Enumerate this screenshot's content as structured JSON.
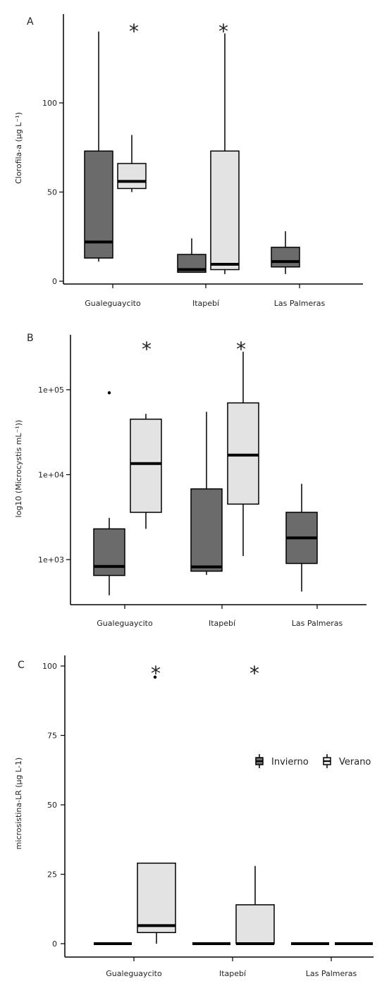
{
  "colors": {
    "winter": "#6b6b6b",
    "summer": "#e3e3e3",
    "stroke": "#000000"
  },
  "legend": {
    "winter_label": "Invierno",
    "summer_label": "Verano"
  },
  "chart_data": [
    {
      "type": "box",
      "panel": "A",
      "ylabel": "Clorofila-a (µg L⁻¹)",
      "y_scale": "linear",
      "ylim": [
        0,
        140
      ],
      "y_ticks": [
        0,
        50,
        100
      ],
      "y_tick_labels": [
        "0",
        "50",
        "100"
      ],
      "categories": [
        "Gualeguaycito",
        "Itapebí",
        "Las Palmeras"
      ],
      "series": [
        {
          "name": "Invierno",
          "boxes": [
            {
              "category": "Gualeguaycito",
              "min": 11,
              "q1": 13,
              "median": 22,
              "q3": 73,
              "max": 140
            },
            {
              "category": "Itapebí",
              "min": 5,
              "q1": 5,
              "median": 6.5,
              "q3": 15,
              "max": 24
            },
            {
              "category": "Las Palmeras",
              "min": 4,
              "q1": 8,
              "median": 11,
              "q3": 19,
              "max": 28
            }
          ]
        },
        {
          "name": "Verano",
          "boxes": [
            {
              "category": "Gualeguaycito",
              "min": 50,
              "q1": 52,
              "median": 56,
              "q3": 66,
              "max": 82
            },
            {
              "category": "Itapebí",
              "min": 4,
              "q1": 6.5,
              "median": 9.5,
              "q3": 73,
              "max": 139
            },
            null
          ]
        }
      ],
      "significance": [
        "*",
        "*"
      ]
    },
    {
      "type": "box",
      "panel": "B",
      "ylabel": "log10 (Microcystis mL⁻¹))",
      "y_scale": "log",
      "ylim": [
        300,
        500000
      ],
      "y_ticks": [
        1000,
        10000,
        100000
      ],
      "y_tick_labels": [
        "1e+03",
        "1e+04",
        "1e+05"
      ],
      "categories": [
        "Gualeguaycito",
        "Itapebí",
        "Las Palmeras"
      ],
      "series": [
        {
          "name": "Invierno",
          "boxes": [
            {
              "category": "Gualeguaycito",
              "min": 380,
              "q1": 650,
              "median": 830,
              "q3": 2300,
              "max": 3100,
              "outliers": [
                92000
              ]
            },
            {
              "category": "Itapebí",
              "min": 660,
              "q1": 730,
              "median": 820,
              "q3": 6800,
              "max": 55000
            },
            {
              "category": "Las Palmeras",
              "min": 420,
              "q1": 900,
              "median": 1800,
              "q3": 3600,
              "max": 7800
            }
          ]
        },
        {
          "name": "Verano",
          "boxes": [
            {
              "category": "Gualeguaycito",
              "min": 2300,
              "q1": 3600,
              "median": 13500,
              "q3": 45000,
              "max": 52000
            },
            {
              "category": "Itapebí",
              "min": 1100,
              "q1": 4500,
              "median": 17000,
              "q3": 70000,
              "max": 280000
            },
            null
          ]
        }
      ],
      "significance": [
        "*",
        "*"
      ]
    },
    {
      "type": "box",
      "panel": "C",
      "ylabel": "microsistina-LR (µg L-1)",
      "y_scale": "linear",
      "ylim": [
        -5,
        100
      ],
      "y_ticks": [
        0,
        25,
        50,
        75,
        100
      ],
      "y_tick_labels": [
        "0",
        "25",
        "50",
        "75",
        "100"
      ],
      "categories": [
        "Gualeguaycito",
        "Itapebí",
        "Las Palmeras"
      ],
      "series": [
        {
          "name": "Invierno",
          "boxes": [
            {
              "category": "Gualeguaycito",
              "min": 0,
              "q1": 0,
              "median": 0,
              "q3": 0,
              "max": 0
            },
            {
              "category": "Itapebí",
              "min": 0,
              "q1": 0,
              "median": 0,
              "q3": 0,
              "max": 0
            },
            {
              "category": "Las Palmeras",
              "min": 0,
              "q1": 0,
              "median": 0,
              "q3": 0,
              "max": 0
            }
          ]
        },
        {
          "name": "Verano",
          "boxes": [
            {
              "category": "Gualeguaycito",
              "min": 0,
              "q1": 4,
              "median": 6.5,
              "q3": 29,
              "max": 29,
              "outliers": [
                96
              ]
            },
            {
              "category": "Itapebí",
              "min": 0,
              "q1": 0,
              "median": 0,
              "q3": 14,
              "max": 28
            },
            {
              "category": "Las Palmeras",
              "min": 0,
              "q1": 0,
              "median": 0,
              "q3": 0,
              "max": 0
            }
          ]
        }
      ],
      "significance": [
        "*",
        "*"
      ],
      "legend": true
    }
  ]
}
